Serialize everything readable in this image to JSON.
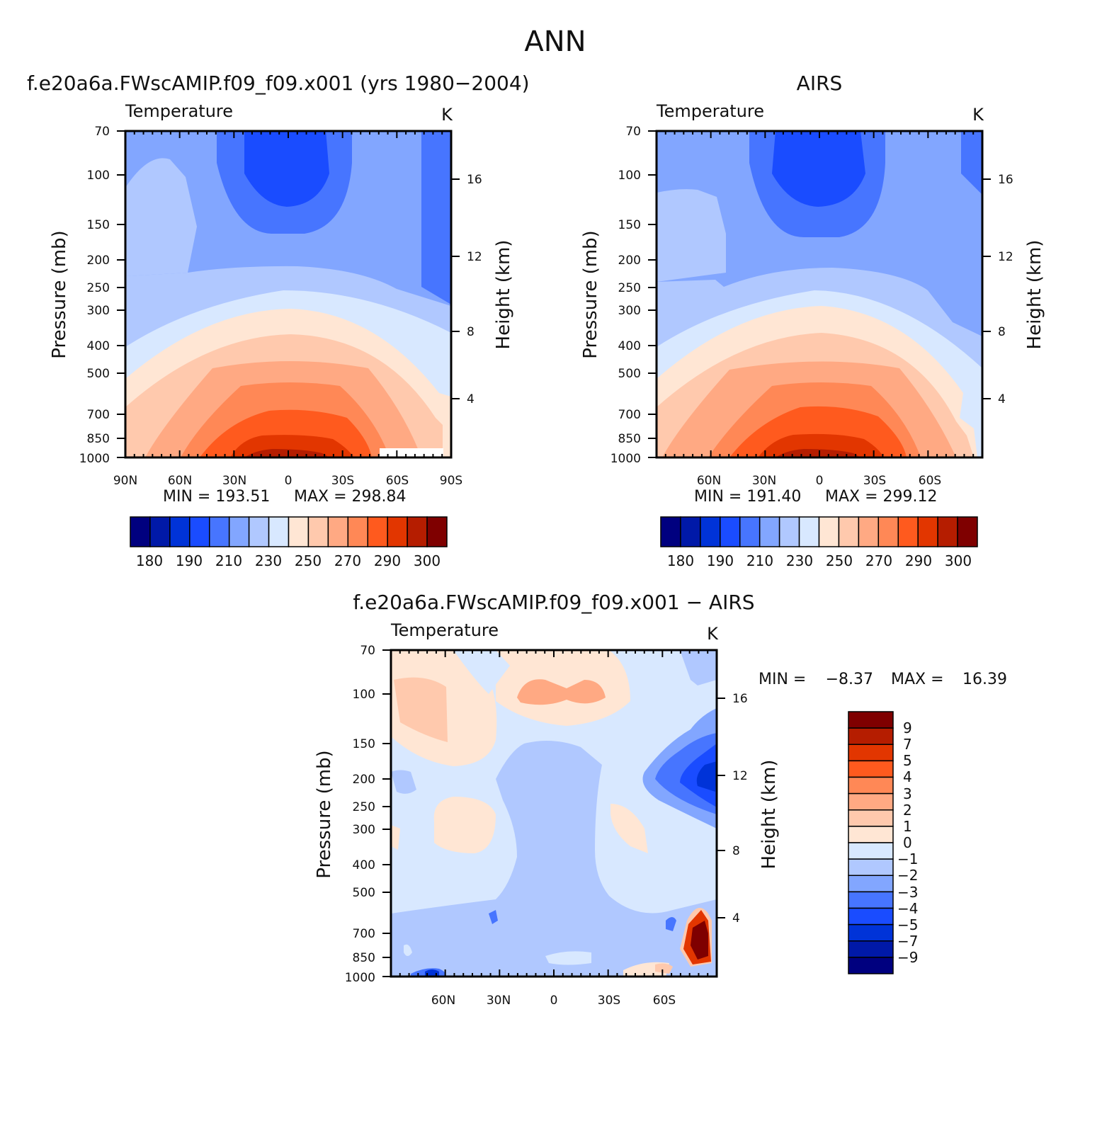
{
  "figure": {
    "title": "ANN",
    "colors": {
      "frame": "#000000",
      "background": "#ffffff"
    }
  },
  "chart_data": [
    {
      "type": "heatmap",
      "panel": "model",
      "title": "f.e20a6a.FWscAMIP.f09_f09.x001 (yrs 1980-2004)",
      "variable": "Temperature",
      "units": "K",
      "xlabel": "",
      "ylabel": "Pressure (mb)",
      "y2label": "Height (km)",
      "xticks": [
        "90N",
        "60N",
        "30N",
        "0",
        "30S",
        "60S",
        "90S"
      ],
      "yticks": [
        "70",
        "100",
        "150",
        "200",
        "250",
        "300",
        "400",
        "500",
        "700",
        "850",
        "1000"
      ],
      "y2ticks": [
        "16",
        "12",
        "8",
        "4"
      ],
      "min_label": "MIN = 193.51",
      "max_label": "MAX = 298.84",
      "min": 193.51,
      "max": 298.84,
      "colorbar": {
        "labels": [
          "180",
          "190",
          "210",
          "230",
          "250",
          "270",
          "290",
          "300"
        ],
        "colors": [
          "#00007f",
          "#0019a8",
          "#0033d8",
          "#1a4cff",
          "#4775ff",
          "#82a6ff",
          "#b0c8ff",
          "#d8e8ff",
          "#ffe6d4",
          "#ffc9ad",
          "#ffa983",
          "#ff8856",
          "#ff5a1e",
          "#e23600",
          "#b51d00",
          "#7f0000"
        ]
      }
    },
    {
      "type": "heatmap",
      "panel": "obs",
      "title": "AIRS",
      "variable": "Temperature",
      "units": "K",
      "xlabel": "",
      "ylabel": "Pressure (mb)",
      "y2label": "Height (km)",
      "xticks": [
        "60N",
        "30N",
        "0",
        "30S",
        "60S"
      ],
      "yticks": [
        "70",
        "100",
        "150",
        "200",
        "250",
        "300",
        "400",
        "500",
        "700",
        "850",
        "1000"
      ],
      "y2ticks": [
        "16",
        "12",
        "8",
        "4"
      ],
      "min_label": "MIN = 191.40",
      "max_label": "MAX = 299.12",
      "min": 191.4,
      "max": 299.12,
      "colorbar": {
        "labels": [
          "180",
          "190",
          "210",
          "230",
          "250",
          "270",
          "290",
          "300"
        ],
        "colors": [
          "#00007f",
          "#0019a8",
          "#0033d8",
          "#1a4cff",
          "#4775ff",
          "#82a6ff",
          "#b0c8ff",
          "#d8e8ff",
          "#ffe6d4",
          "#ffc9ad",
          "#ffa983",
          "#ff8856",
          "#ff5a1e",
          "#e23600",
          "#b51d00",
          "#7f0000"
        ]
      }
    },
    {
      "type": "heatmap",
      "panel": "diff",
      "title": "f.e20a6a.FWscAMIP.f09_f09.x001 - AIRS",
      "variable": "Temperature",
      "units": "K",
      "xlabel": "",
      "ylabel": "Pressure (mb)",
      "y2label": "Height (km)",
      "xticks": [
        "60N",
        "30N",
        "0",
        "30S",
        "60S"
      ],
      "yticks": [
        "70",
        "100",
        "150",
        "200",
        "250",
        "300",
        "400",
        "500",
        "700",
        "850",
        "1000"
      ],
      "y2ticks": [
        "16",
        "12",
        "8",
        "4"
      ],
      "min_label": "MIN =",
      "min_value": "-8.37",
      "max_label": "MAX =",
      "max_value": "16.39",
      "min": -8.37,
      "max": 16.39,
      "colorbar": {
        "labels": [
          "9",
          "7",
          "5",
          "4",
          "3",
          "2",
          "1",
          "0",
          "-1",
          "-2",
          "-3",
          "-4",
          "-5",
          "-7",
          "-9"
        ],
        "colors": [
          "#7f0000",
          "#b51d00",
          "#e23600",
          "#ff5a1e",
          "#ff8856",
          "#ffa983",
          "#ffc9ad",
          "#ffe6d4",
          "#d8e8ff",
          "#b0c8ff",
          "#82a6ff",
          "#4775ff",
          "#1a4cff",
          "#0033d8",
          "#0019a8",
          "#00007f"
        ]
      }
    }
  ]
}
